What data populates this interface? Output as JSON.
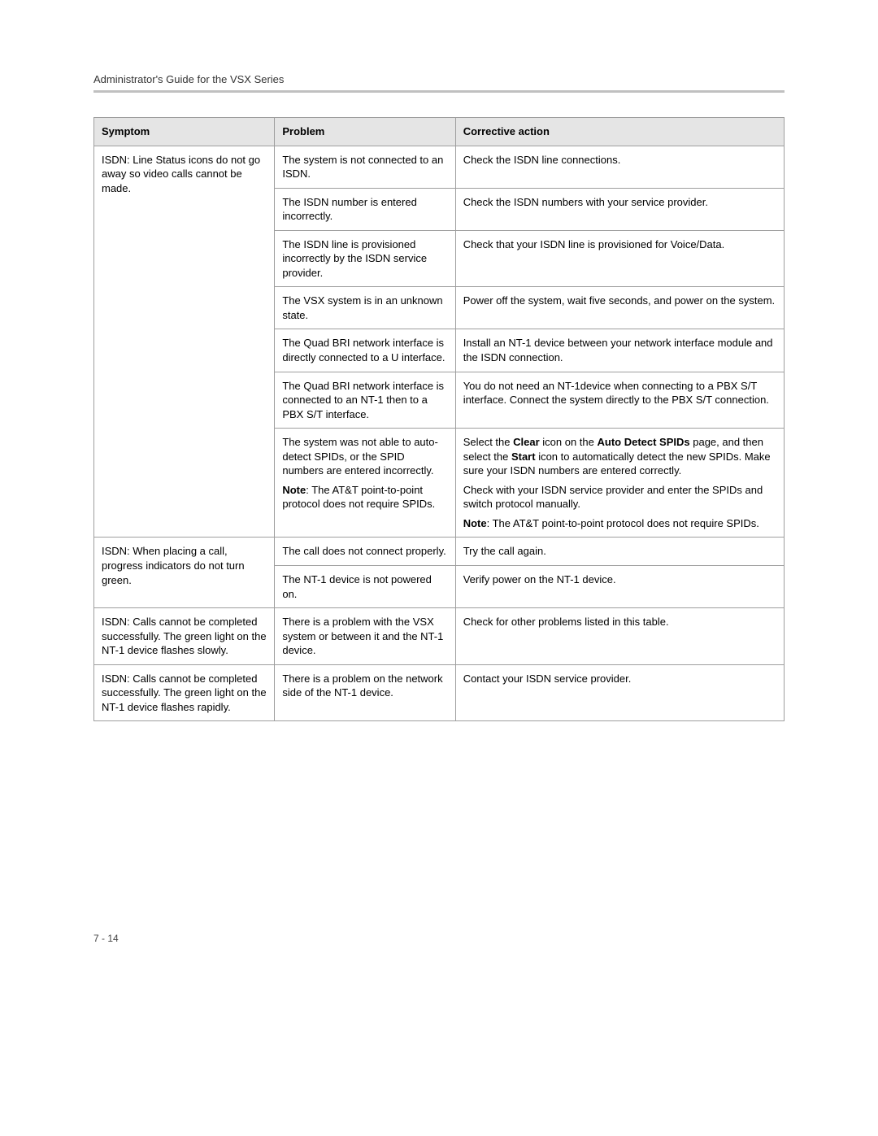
{
  "header": {
    "title": "Administrator's Guide for the VSX Series"
  },
  "footer": {
    "page": "7 - 14"
  },
  "table": {
    "columns": {
      "symptom": "Symptom",
      "problem": "Problem",
      "action": "Corrective action"
    },
    "group1": {
      "symptom": "ISDN: Line Status icons do not go away so video calls cannot be made.",
      "rows": {
        "r1": {
          "problem": "The system is not connected to an ISDN.",
          "action": "Check the ISDN line connections."
        },
        "r2": {
          "problem": "The ISDN number is entered incorrectly.",
          "action": "Check the ISDN numbers with your service provider."
        },
        "r3": {
          "problem": "The ISDN line is provisioned incorrectly by the ISDN service provider.",
          "action": "Check that your ISDN line is provisioned for Voice/Data."
        },
        "r4": {
          "problem": "The VSX system is in an unknown state.",
          "action": "Power off the system, wait five seconds, and power on the system."
        },
        "r5": {
          "problem": "The Quad BRI network interface is directly connected to a U interface.",
          "action": "Install an NT-1 device between your network interface module and the ISDN connection."
        },
        "r6": {
          "problem": "The Quad BRI network interface is connected to an NT-1 then to a PBX S/T interface.",
          "action": "You do not need an NT-1device when connecting to a PBX S/T interface. Connect the system directly to the PBX S/T connection."
        },
        "r7": {
          "problem_p1": "The system was not able to auto-detect SPIDs, or the SPID numbers are entered incorrectly.",
          "problem_note_label": "Note",
          "problem_note_text": ": The AT&T point-to-point protocol does not require SPIDs.",
          "action_p1_pre": "Select the ",
          "action_p1_b1": "Clear",
          "action_p1_mid": " icon on the ",
          "action_p1_b2": "Auto Detect SPIDs",
          "action_p1_mid2": " page, and then select the ",
          "action_p1_b3": "Start",
          "action_p1_post": " icon to automatically detect the new SPIDs. Make sure your ISDN numbers are entered correctly.",
          "action_p2": "Check with your ISDN service provider and enter the SPIDs and switch protocol manually.",
          "action_note_label": "Note",
          "action_note_text": ": The AT&T point-to-point protocol does not require SPIDs."
        }
      }
    },
    "group2": {
      "symptom": "ISDN: When placing a call, progress indicators do not turn green.",
      "rows": {
        "r1": {
          "problem": "The call does not connect properly.",
          "action": "Try the call again."
        },
        "r2": {
          "problem": "The NT-1 device is not powered on.",
          "action": "Verify power on the NT-1 device."
        }
      }
    },
    "group3": {
      "symptom": "ISDN: Calls cannot be completed successfully. The green light on the NT-1 device flashes slowly.",
      "problem": "There is a problem with the VSX system or between it and the NT-1 device.",
      "action": "Check for other problems listed in this table."
    },
    "group4": {
      "symptom": "ISDN: Calls cannot be completed successfully. The green light on the NT-1 device flashes rapidly.",
      "problem": "There is a problem on the network side of the NT-1 device.",
      "action": "Contact your ISDN service provider."
    }
  }
}
